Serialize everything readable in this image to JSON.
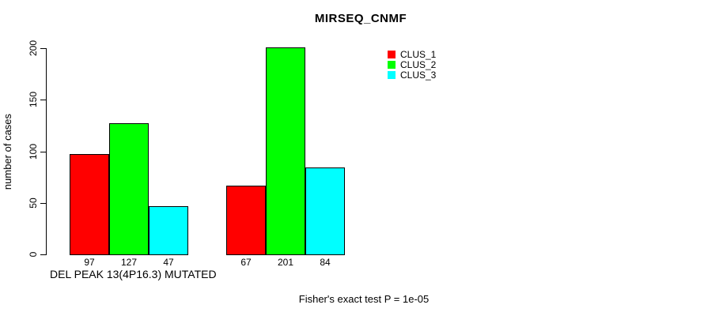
{
  "chart_data": {
    "type": "bar",
    "title": "MIRSEQ_CNMF",
    "ylabel": "number of cases",
    "xlabel": "DEL PEAK 13(4P16.3) MUTATED",
    "annotation": "Fisher's exact test P = 1e-05",
    "ylim": [
      0,
      200
    ],
    "yticks": [
      0,
      50,
      100,
      150,
      200
    ],
    "grid": false,
    "legend_position": "top-right",
    "groups_count": 2,
    "series": [
      {
        "name": "CLUS_1",
        "color": "#ff0000",
        "values": [
          97,
          67
        ]
      },
      {
        "name": "CLUS_2",
        "color": "#00ff00",
        "values": [
          127,
          201
        ]
      },
      {
        "name": "CLUS_3",
        "color": "#00ffff",
        "values": [
          47,
          84
        ]
      }
    ],
    "bar_value_labels": [
      [
        97,
        127,
        47
      ],
      [
        67,
        201,
        84
      ]
    ]
  }
}
